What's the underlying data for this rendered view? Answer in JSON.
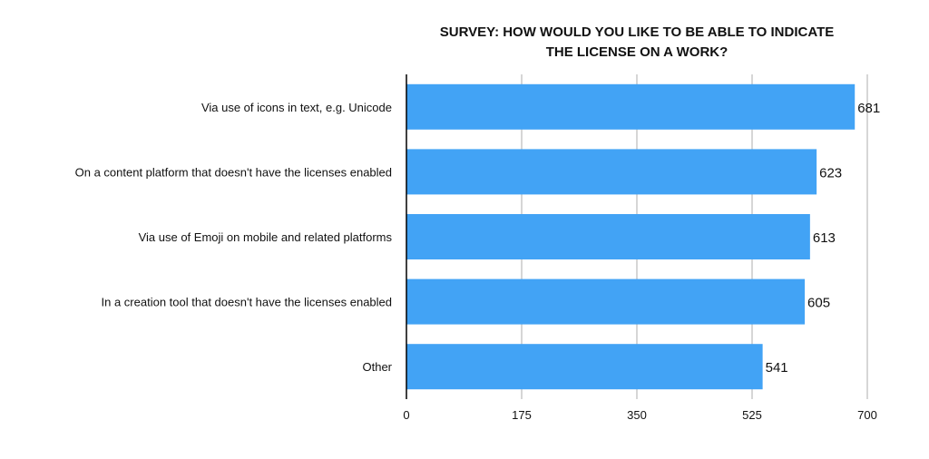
{
  "chart_data": {
    "type": "bar",
    "orientation": "horizontal",
    "title_lines": [
      "SURVEY: HOW WOULD YOU LIKE TO BE ABLE TO INDICATE",
      "THE LICENSE ON A WORK?"
    ],
    "categories": [
      "Via use of icons in text, e.g. Unicode",
      "On a content platform that doesn't have the licenses enabled",
      "Via use of Emoji on mobile and related platforms",
      "In a creation tool that doesn't have the licenses enabled",
      "Other"
    ],
    "values": [
      681,
      623,
      613,
      605,
      541
    ],
    "value_labels": [
      "681",
      "623",
      "613",
      "605",
      "541"
    ],
    "xlim": [
      0,
      700
    ],
    "x_ticks": [
      0,
      175,
      350,
      525,
      700
    ],
    "x_tick_labels": [
      "0",
      "175",
      "350",
      "525",
      "700"
    ],
    "grid": true,
    "legend": false,
    "colors": {
      "bar": "#42a3f5",
      "grid": "#c8c8c8",
      "axis": "#000000",
      "text": "#111111"
    }
  }
}
